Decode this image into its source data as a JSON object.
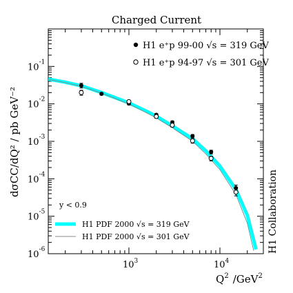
{
  "chart_data": {
    "type": "scatter",
    "title": "Charged Current",
    "xlabel_main": "Q",
    "xlabel_sup": "2",
    "xlabel_unit_main": "/GeV",
    "xlabel_unit_sup": "2",
    "ylabel": "dσCC/dQ² / pb GeV⁻²",
    "x_scale": "log",
    "y_scale": "log",
    "xlim": [
      130,
      30000
    ],
    "ylim": [
      1e-06,
      1
    ],
    "x_ticks": [
      {
        "value": 1000,
        "base": "10",
        "exp": "3"
      },
      {
        "value": 10000,
        "base": "10",
        "exp": "4"
      }
    ],
    "y_ticks": [
      {
        "value": 0.1,
        "base": "10",
        "exp": "-1"
      },
      {
        "value": 0.01,
        "base": "10",
        "exp": "-2"
      },
      {
        "value": 0.001,
        "base": "10",
        "exp": "-3"
      },
      {
        "value": 0.0001,
        "base": "10",
        "exp": "-4"
      },
      {
        "value": 1e-05,
        "base": "10",
        "exp": "-5"
      },
      {
        "value": 1e-06,
        "base": "10",
        "exp": "-6"
      }
    ],
    "series": [
      {
        "name": "H1 e⁺p 99-00 √s = 319 GeV",
        "marker": "filled-circle",
        "x": [
          300,
          500,
          1000,
          2000,
          3000,
          5000,
          8000,
          15000
        ],
        "y": [
          0.031,
          0.0185,
          0.0102,
          0.0051,
          0.0032,
          0.00138,
          0.00052,
          5.7e-05
        ],
        "err_low": [
          0.0045,
          0.0014,
          0.0008,
          0.0004,
          0.00032,
          0.00014,
          6e-05,
          1.1e-05
        ],
        "err_high": [
          0.0045,
          0.0014,
          0.0008,
          0.0004,
          0.00032,
          0.00014,
          6e-05,
          1.1e-05
        ]
      },
      {
        "name": "H1 e⁺p 94-97 √s = 301 GeV",
        "marker": "open-circle",
        "x": [
          300,
          1000,
          2000,
          3000,
          5000,
          8000,
          15000
        ],
        "y": [
          0.02,
          0.0115,
          0.0046,
          0.0027,
          0.00103,
          0.00035,
          4.4e-05
        ],
        "err_low": [
          0.003,
          0.0009,
          0.00045,
          0.0003,
          0.00014,
          5e-05,
          9e-06
        ],
        "err_high": [
          0.003,
          0.0009,
          0.00045,
          0.0003,
          0.00014,
          5e-05,
          9e-06
        ]
      }
    ],
    "curves": [
      {
        "name": "H1 PDF 2000 √s = 319 GeV",
        "color": "#00ffff",
        "x": [
          130,
          200,
          300,
          500,
          700,
          1000,
          1500,
          2000,
          3000,
          5000,
          7000,
          10000,
          15000,
          20000,
          25000
        ],
        "y": [
          0.046,
          0.038,
          0.0305,
          0.0202,
          0.0148,
          0.0106,
          0.0067,
          0.0047,
          0.0026,
          0.00118,
          0.00056,
          0.00022,
          5.2e-05,
          1.07e-05,
          1.3e-06
        ]
      },
      {
        "name": "H1 PDF 2000 √s = 301 GeV",
        "color": "#888888",
        "x": [
          130,
          200,
          300,
          500,
          700,
          1000,
          1500,
          2000,
          3000,
          5000,
          7000,
          10000,
          15000,
          20000,
          23500
        ],
        "y": [
          0.045,
          0.037,
          0.0295,
          0.0194,
          0.0141,
          0.0099,
          0.0061,
          0.0042,
          0.0023,
          0.00101,
          0.00046,
          0.000175,
          3.8e-05,
          6.5e-06,
          1.2e-06
        ]
      }
    ],
    "cut_label": "y < 0.9",
    "side_label": "H1 Collaboration",
    "legend_position": "top-right (points), bottom-left (curves)",
    "grid": false
  }
}
